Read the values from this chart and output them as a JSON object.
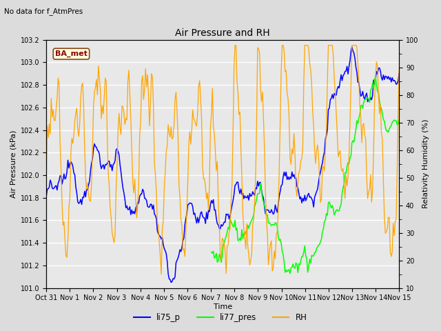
{
  "title": "Air Pressure and RH",
  "no_data_text": "No data for f_AtmPres",
  "station_label": "BA_met",
  "ylabel_left": "Air Pressure (kPa)",
  "ylabel_right": "Relativity Humidity (%)",
  "xlabel": "Time",
  "ylim_left": [
    101.0,
    103.2
  ],
  "ylim_right": [
    10,
    100
  ],
  "yticks_left": [
    101.0,
    101.2,
    101.4,
    101.6,
    101.8,
    102.0,
    102.2,
    102.4,
    102.6,
    102.8,
    103.0,
    103.2
  ],
  "yticks_right": [
    10,
    20,
    30,
    40,
    50,
    60,
    70,
    80,
    90,
    100
  ],
  "bg_color": "#dcdcdc",
  "plot_bg_color": "#e8e8e8",
  "grid_color": "#ffffff",
  "line_colors": {
    "li75_p": "blue",
    "li77_pres": "lime",
    "RH": "orange"
  },
  "xtick_labels": [
    "Oct 31",
    "Nov 1",
    "Nov 2",
    "Nov 3",
    "Nov 4",
    "Nov 5",
    "Nov 6",
    "Nov 7",
    "Nov 8",
    "Nov 9",
    "Nov 10",
    "Nov 11",
    "Nov 12",
    "Nov 13",
    "Nov 14",
    "Nov 15"
  ],
  "figsize": [
    6.4,
    4.8
  ],
  "dpi": 100
}
